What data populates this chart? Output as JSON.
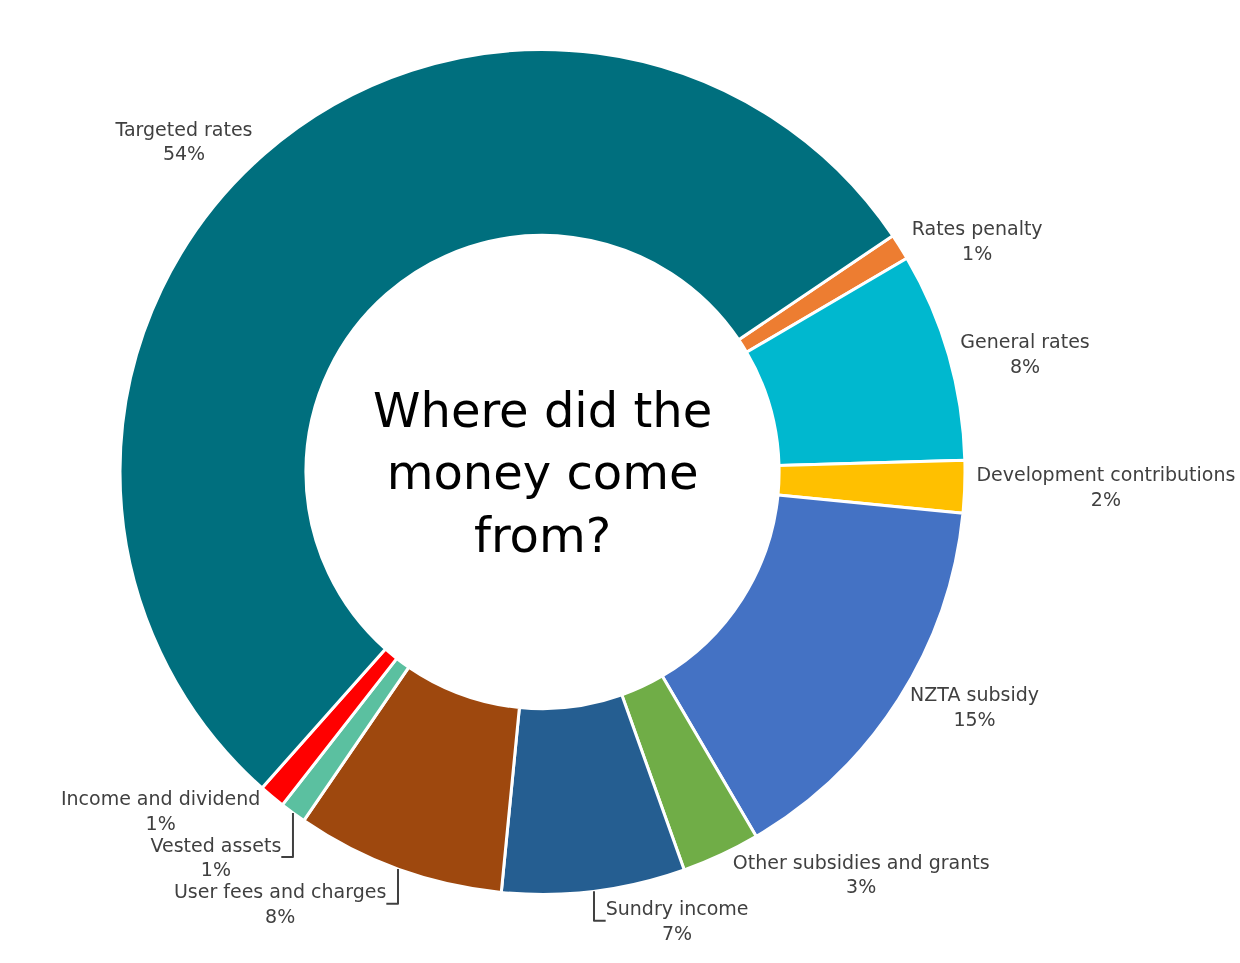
{
  "chart_data": {
    "type": "donut",
    "title": "Where did the money come from?",
    "categories": [
      "Rates penalty",
      "General rates",
      "Development contributions",
      "NZTA subsidy",
      "Other subsidies and grants",
      "Sundry income",
      "User fees and charges",
      "Vested assets",
      "Income and dividend",
      "Targeted rates"
    ],
    "values": [
      1,
      8,
      2,
      15,
      3,
      7,
      8,
      1,
      1,
      54
    ],
    "value_labels": [
      "1%",
      "8%",
      "2%",
      "15%",
      "3%",
      "7%",
      "8%",
      "1%",
      "1%",
      "54%"
    ],
    "colors": [
      "#ed7d31",
      "#00b8cf",
      "#ffc000",
      "#4472c4",
      "#70ad47",
      "#255e91",
      "#9e480e",
      "#5bc0a0",
      "#ff0000",
      "#006f7e"
    ],
    "legend": false
  }
}
